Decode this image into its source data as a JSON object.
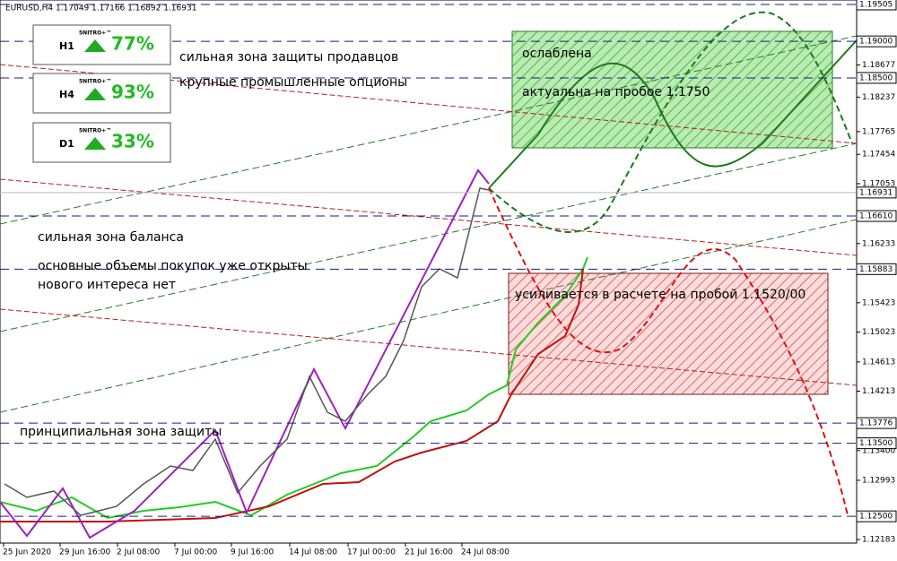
{
  "header": {
    "title": "EURUSD,H4  1.17049 1.17166 1.16892 1.16931"
  },
  "indicators": [
    {
      "timeframe": "H1",
      "brand": "5NITRO+™",
      "percent": "77%"
    },
    {
      "timeframe": "H4",
      "brand": "5NITRO+™",
      "percent": "93%"
    },
    {
      "timeframe": "D1",
      "brand": "5NITRO+™",
      "percent": "33%"
    }
  ],
  "price_axis": {
    "labels": [
      "1.18677",
      "1.18237",
      "1.17765",
      "1.17454",
      "1.17053",
      "1.16233",
      "1.15423",
      "1.15023",
      "1.14613",
      "1.14213",
      "1.13400",
      "1.12993",
      "1.12183"
    ],
    "levels": [
      "1.19505",
      "1.19000",
      "1.18500",
      "1.16931",
      "1.16610",
      "1.15883",
      "1.13776",
      "1.13500",
      "1.12500"
    ]
  },
  "time_axis": {
    "labels": [
      "25 Jun 2020",
      "29 Jun 16:00",
      "2 Jul 08:00",
      "7 Jul 00:00",
      "9 Jul 16:00",
      "14 Jul 08:00",
      "17 Jul 00:00",
      "21 Jul 16:00",
      "24 Jul 08:00"
    ]
  },
  "annotations": [
    "сильная зона защиты продавцов",
    "крупные промышленные опционы",
    "ослаблена",
    "актуальна на пробое 1.1750",
    "сильная зона баланса",
    "основные объемы покупок уже открыты",
    "нового интереса нет",
    "усиливается в расчете на пробой 1.1520/00",
    "принципиальная зона защиты"
  ]
}
